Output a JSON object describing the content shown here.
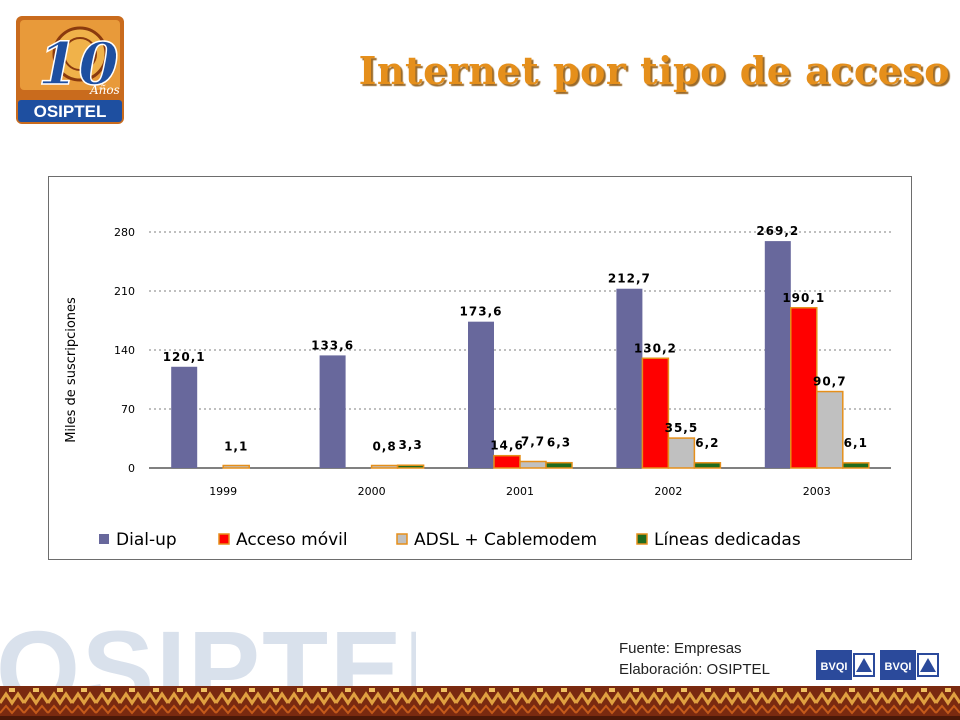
{
  "header": {
    "title": "Internet por tipo de acceso",
    "logo": {
      "number": "10",
      "word": "Años",
      "brand": "OSIPTEL"
    }
  },
  "colors": {
    "title": "#e58f1b",
    "dial_up": "#68689c",
    "movil": "#ff0000",
    "adsl": "#c0c0c0",
    "dedicadas": "#1f6b1f",
    "bar_border": "#e58f1b"
  },
  "chart_data": {
    "type": "bar",
    "categories": [
      "1999",
      "2000",
      "2001",
      "2002",
      "2003"
    ],
    "ylabel": "Miles de suscripciones",
    "ylim": [
      0,
      280
    ],
    "yticks": [
      "0",
      "70",
      "140",
      "210",
      "280"
    ],
    "grid": true,
    "legend_position": "bottom",
    "series": [
      {
        "name": "Dial-up",
        "color": "#68689c",
        "values": [
          120.1,
          133.6,
          173.6,
          212.7,
          269.2
        ],
        "labels": [
          "120,1",
          "133,6",
          "173,6",
          "212,7",
          "269,2"
        ]
      },
      {
        "name": "Acceso móvil",
        "color": "#ff0000",
        "values": [
          0,
          0,
          14.6,
          130.2,
          190.1
        ],
        "labels": [
          "",
          "",
          "14,6",
          "130,2",
          "190,1"
        ]
      },
      {
        "name": "ADSL + Cablemodem",
        "color": "#c0c0c0",
        "values": [
          1.1,
          0.8,
          7.7,
          35.5,
          90.7
        ],
        "labels": [
          "1,1",
          "0,8",
          "7,7",
          "35,5",
          "90,7"
        ]
      },
      {
        "name": "Líneas dedicadas",
        "color": "#1f6b1f",
        "values": [
          0,
          3.3,
          6.3,
          6.2,
          6.1
        ],
        "labels": [
          "",
          "3,3",
          "6,3",
          "6,2",
          "6,1"
        ]
      }
    ]
  },
  "footer": {
    "source": "Fuente: Empresas",
    "elaboration": "Elaboración: OSIPTEL",
    "watermark": "OSIPTEL",
    "cert_logos": [
      "BVQI",
      "BVQI"
    ]
  }
}
